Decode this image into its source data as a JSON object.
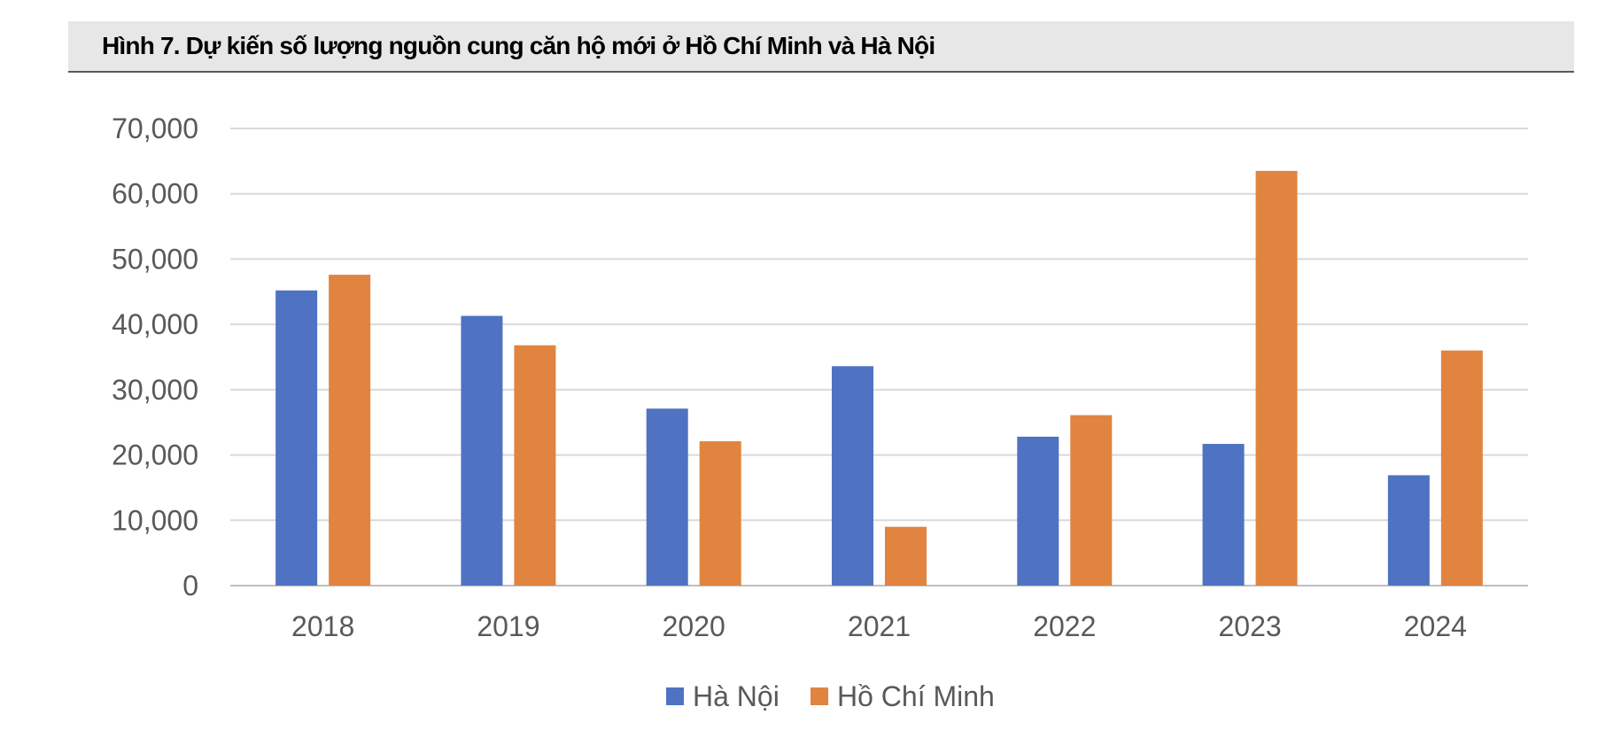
{
  "title": "Hình 7. Dự kiến số lượng nguồn cung căn hộ mới ở Hồ Chí Minh và Hà Nội",
  "chart_data": {
    "type": "bar",
    "categories": [
      "2018",
      "2019",
      "2020",
      "2021",
      "2022",
      "2023",
      "2024"
    ],
    "series": [
      {
        "name": "Hà Nội",
        "color": "#4f73c2",
        "values": [
          45200,
          41300,
          27100,
          33600,
          22800,
          21700,
          16900
        ]
      },
      {
        "name": "Hồ Chí Minh",
        "color": "#e0843f",
        "values": [
          47600,
          36800,
          22100,
          9000,
          26100,
          63500,
          36000
        ]
      }
    ],
    "yticks": [
      "0",
      "10,000",
      "20,000",
      "30,000",
      "40,000",
      "50,000",
      "60,000",
      "70,000"
    ],
    "ylim": [
      0,
      70000
    ],
    "grid": true,
    "legend_position": "bottom"
  }
}
